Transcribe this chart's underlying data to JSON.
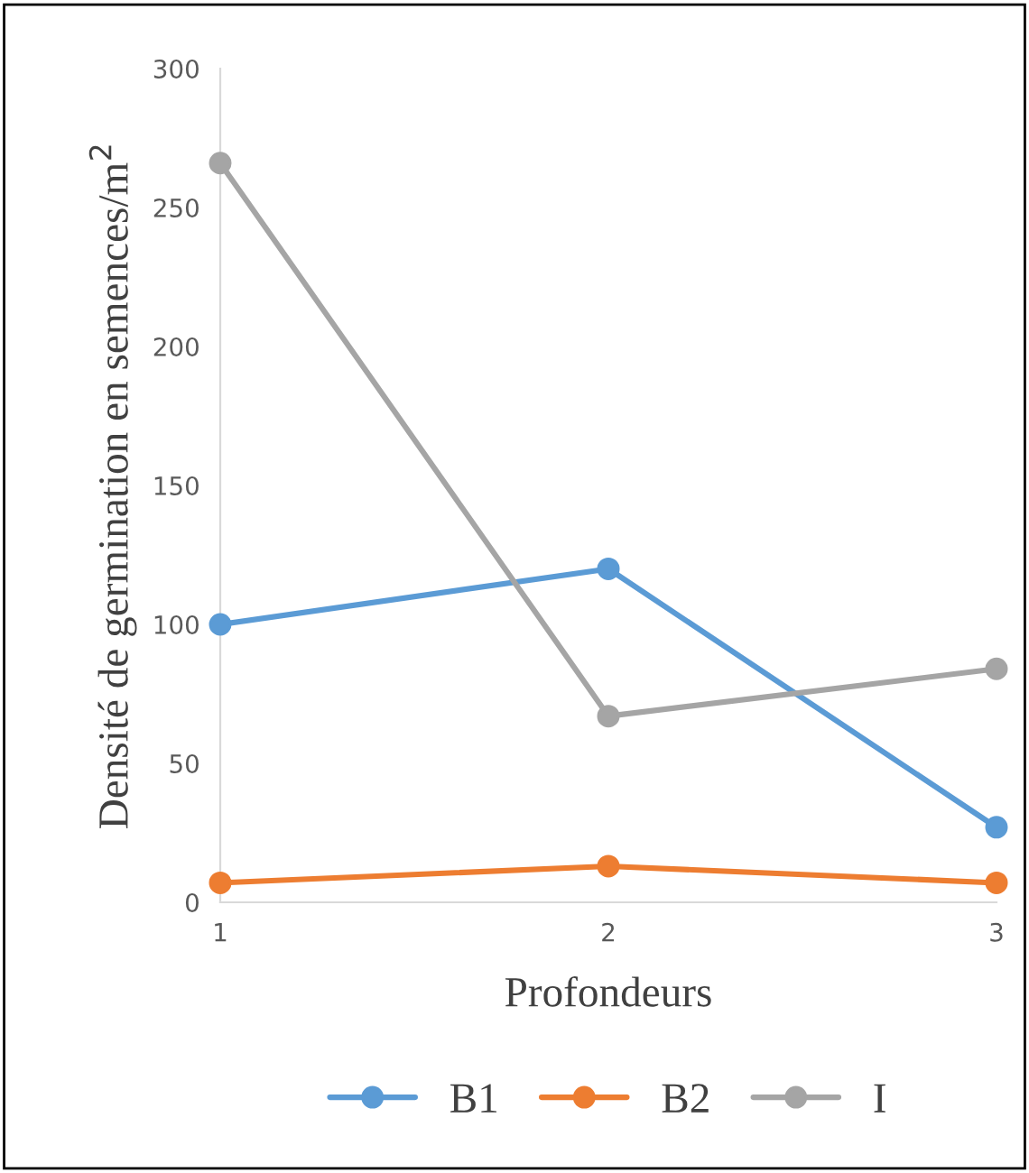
{
  "chart_data": {
    "type": "line",
    "xlabel": "Profondeurs",
    "ylabel": "Densité de germination en semences/m$^{2}$",
    "x": [
      1,
      2,
      3
    ],
    "series": [
      {
        "name": "B1",
        "color": "#5b9bd5",
        "values": [
          100,
          120,
          27
        ]
      },
      {
        "name": "B2",
        "color": "#ed7d31",
        "values": [
          7,
          13,
          7
        ]
      },
      {
        "name": "I",
        "color": "#a5a5a5",
        "values": [
          266,
          67,
          84
        ]
      }
    ],
    "xlim": [
      1,
      3
    ],
    "xticks": [
      1,
      2,
      3
    ],
    "ylim": [
      0,
      300
    ],
    "yticks": [
      0,
      50,
      100,
      150,
      200,
      250,
      300
    ],
    "grid": false,
    "legend": "bottom",
    "marker": "circle",
    "line_style": "solid"
  }
}
